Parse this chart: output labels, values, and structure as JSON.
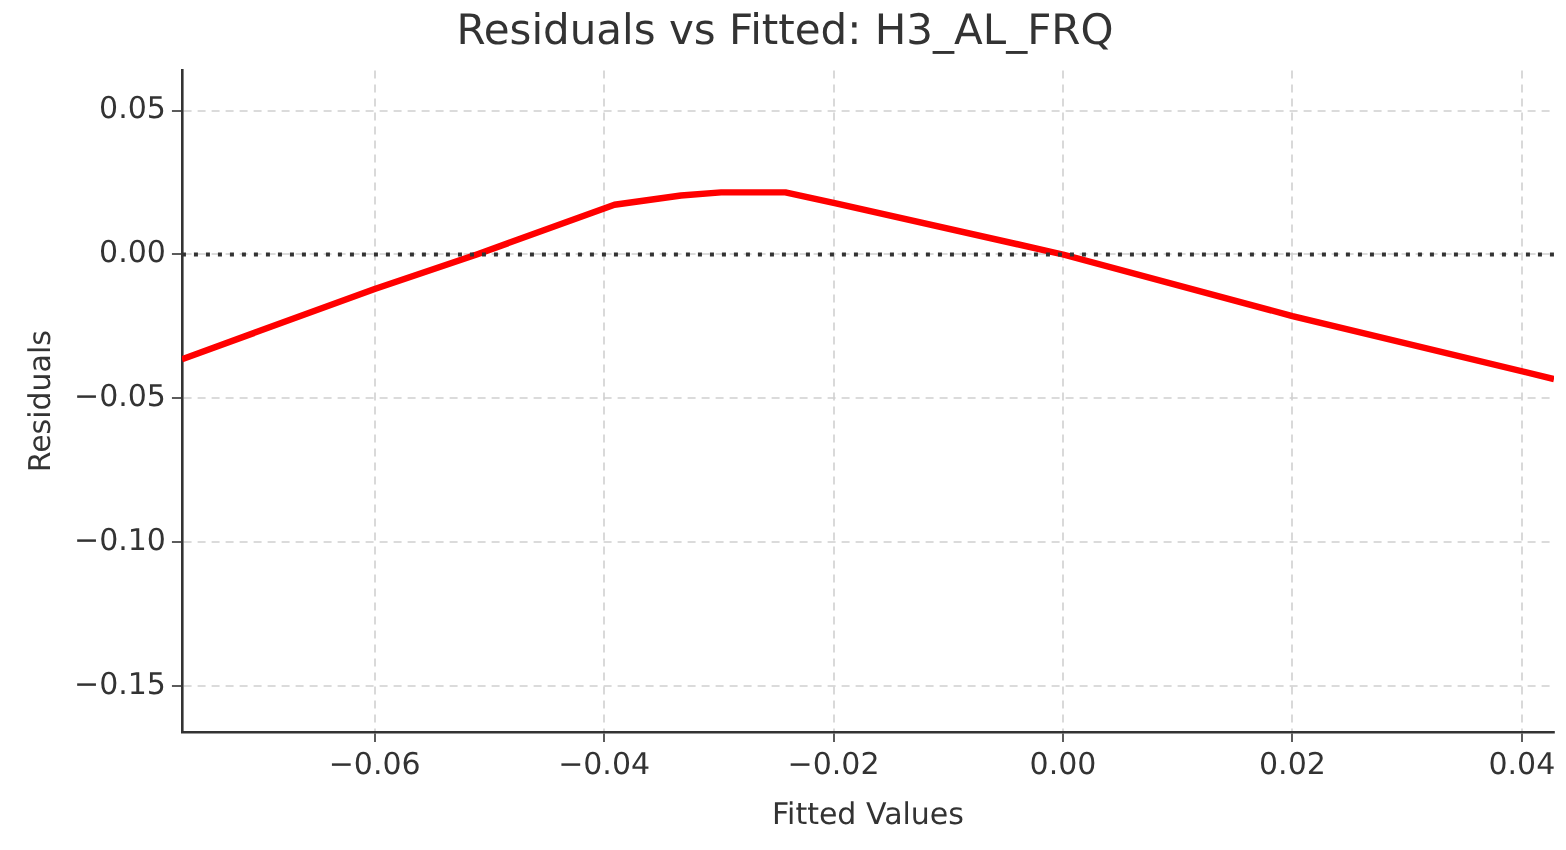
{
  "chart_data": {
    "type": "line",
    "title": "Residuals vs Fitted: H3_AL_FRQ",
    "xlabel": "Fitted Values",
    "ylabel": "Residuals",
    "x": [
      -0.0768,
      -0.06,
      -0.0511,
      -0.0391,
      -0.0333,
      -0.0298,
      -0.0242,
      -0.0198,
      0,
      0.02,
      0.0428
    ],
    "series": [
      {
        "color": "#ff0000",
        "values": [
          -0.0364,
          -0.012,
          0,
          0.0173,
          0.0205,
          0.0216,
          0.0216,
          0.0178,
          0,
          -0.0214,
          -0.0433
        ]
      }
    ],
    "xlim": [
      -0.0768,
      0.0428
    ],
    "xticks": [
      {
        "value": -0.06,
        "label": "−0.06"
      },
      {
        "value": -0.04,
        "label": "−0.04"
      },
      {
        "value": -0.02,
        "label": "−0.02"
      },
      {
        "value": 0,
        "label": "0.00"
      },
      {
        "value": 0.02,
        "label": "0.02"
      },
      {
        "value": 0.04,
        "label": "0.04"
      }
    ],
    "ylim": [
      -0.166,
      0.064
    ],
    "yticks": [
      {
        "value": -0.15,
        "label": "−0.15"
      },
      {
        "value": -0.1,
        "label": "−0.10"
      },
      {
        "value": -0.05,
        "label": "−0.05"
      },
      {
        "value": 0,
        "label": "0.00"
      },
      {
        "value": 0.05,
        "label": "0.05"
      }
    ],
    "ref_lines": [
      {
        "axis": "y",
        "value": 0,
        "color": "#333333",
        "line_style": "dotted"
      }
    ],
    "grid": true,
    "legend": false,
    "marker": "none",
    "line_style": "solid"
  }
}
